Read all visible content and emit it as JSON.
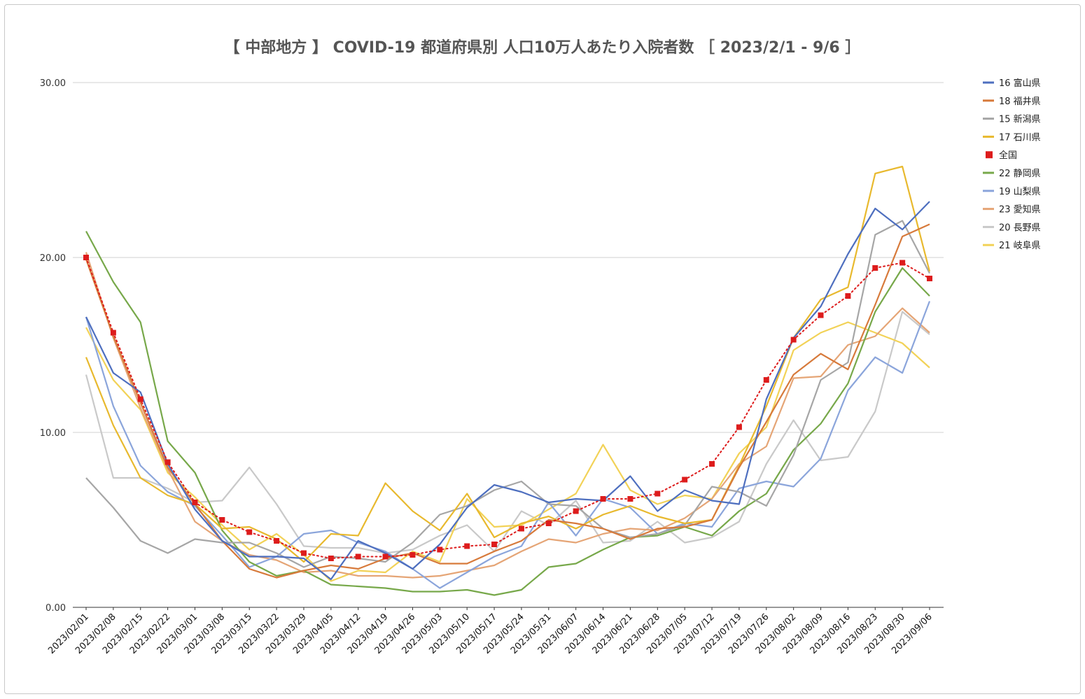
{
  "chart_data": {
    "type": "line",
    "title": "【 中部地方 】 COVID-19 都道府県別 人口10万人あたり入院者数 ［ 2023/2/1 - 9/6 ］",
    "xlabel": "",
    "ylabel": "",
    "ylim": [
      0,
      30
    ],
    "yticks": [
      "0.00",
      "10.00",
      "20.00",
      "30.00"
    ],
    "grid": true,
    "legend_position": "right",
    "categories": [
      "2023/02/01",
      "2023/02/08",
      "2023/02/15",
      "2023/02/22",
      "2023/03/01",
      "2023/03/08",
      "2023/03/15",
      "2023/03/22",
      "2023/03/29",
      "2023/04/05",
      "2023/04/12",
      "2023/04/19",
      "2023/04/26",
      "2023/05/03",
      "2023/05/10",
      "2023/05/17",
      "2023/05/24",
      "2023/05/31",
      "2023/06/07",
      "2023/06/14",
      "2023/06/21",
      "2023/06/28",
      "2023/07/05",
      "2023/07/12",
      "2023/07/19",
      "2023/07/26",
      "2023/08/02",
      "2023/08/09",
      "2023/08/16",
      "2023/08/23",
      "2023/08/30",
      "2023/09/06"
    ],
    "series": [
      {
        "name": "16 富山県",
        "color": "#4e6fbf",
        "style": "solid",
        "values": [
          16.6,
          13.4,
          12.3,
          8.2,
          5.6,
          3.8,
          2.9,
          2.9,
          2.8,
          1.6,
          3.8,
          3.1,
          2.2,
          3.6,
          5.7,
          7.0,
          6.6,
          6.0,
          6.2,
          6.1,
          7.5,
          5.5,
          6.7,
          6.1,
          5.9,
          11.9,
          15.4,
          17.2,
          20.2,
          22.8,
          21.6,
          23.2
        ]
      },
      {
        "name": "18 福井県",
        "color": "#d77a3b",
        "style": "solid",
        "values": [
          19.9,
          15.5,
          11.7,
          8.0,
          5.9,
          3.8,
          2.2,
          1.7,
          2.1,
          2.4,
          2.2,
          2.8,
          3.1,
          2.5,
          2.5,
          3.2,
          3.8,
          5.0,
          4.8,
          4.5,
          3.9,
          4.5,
          4.6,
          5.0,
          8.0,
          10.6,
          13.3,
          14.5,
          13.6,
          17.3,
          21.2,
          21.9
        ]
      },
      {
        "name": "15 新潟県",
        "color": "#a6a6a6",
        "style": "solid",
        "values": [
          7.4,
          5.7,
          3.8,
          3.1,
          3.9,
          3.7,
          3.7,
          3.1,
          2.3,
          2.9,
          2.8,
          2.6,
          3.7,
          5.3,
          5.8,
          6.7,
          7.2,
          5.9,
          5.8,
          4.5,
          4.0,
          4.2,
          4.7,
          6.9,
          6.6,
          5.8,
          8.7,
          13.0,
          14.0,
          21.3,
          22.1,
          19.1
        ]
      },
      {
        "name": "17 石川県",
        "color": "#e8b92e",
        "style": "solid",
        "values": [
          14.3,
          10.4,
          7.4,
          6.4,
          5.9,
          4.5,
          4.6,
          3.9,
          2.6,
          4.2,
          4.1,
          7.1,
          5.5,
          4.4,
          6.5,
          4.0,
          4.8,
          5.2,
          4.5,
          5.3,
          5.8,
          5.2,
          4.8,
          5.0,
          8.1,
          11.5,
          15.4,
          17.6,
          18.3,
          24.8,
          25.2,
          19.2
        ]
      },
      {
        "name": "全国",
        "color": "#dd1c1c",
        "style": "dotted-marker",
        "values": [
          20.0,
          15.7,
          11.9,
          8.3,
          6.0,
          5.0,
          4.3,
          3.8,
          3.1,
          2.8,
          2.9,
          2.9,
          3.0,
          3.3,
          3.5,
          3.6,
          4.5,
          4.8,
          5.5,
          6.2,
          6.2,
          6.5,
          7.3,
          8.2,
          10.3,
          13.0,
          15.3,
          16.7,
          17.8,
          19.4,
          19.7,
          18.8
        ]
      },
      {
        "name": "22 静岡県",
        "color": "#77a84a",
        "style": "solid",
        "values": [
          21.5,
          18.6,
          16.3,
          9.5,
          7.7,
          4.4,
          2.6,
          1.8,
          2.1,
          1.3,
          1.2,
          1.1,
          0.9,
          0.9,
          1.0,
          0.7,
          1.0,
          2.3,
          2.5,
          3.3,
          4.0,
          4.1,
          4.6,
          4.1,
          5.5,
          6.5,
          9.0,
          10.5,
          12.8,
          16.9,
          19.4,
          17.8
        ]
      },
      {
        "name": "19 山梨県",
        "color": "#8ba5db",
        "style": "solid",
        "values": [
          16.6,
          11.5,
          8.1,
          6.6,
          5.8,
          4.1,
          2.3,
          2.9,
          4.2,
          4.4,
          3.7,
          3.2,
          2.2,
          1.1,
          2.0,
          2.9,
          3.5,
          6.0,
          4.1,
          6.2,
          5.7,
          4.2,
          4.8,
          4.6,
          6.8,
          7.2,
          6.9,
          8.5,
          12.4,
          14.3,
          13.4,
          17.5
        ]
      },
      {
        "name": "23 愛知県",
        "color": "#e5a576",
        "style": "solid",
        "values": [
          20.3,
          15.4,
          11.4,
          7.9,
          4.9,
          3.8,
          3.0,
          2.7,
          2.0,
          2.1,
          1.8,
          1.8,
          1.7,
          1.8,
          2.1,
          2.4,
          3.2,
          3.9,
          3.7,
          4.2,
          4.5,
          4.4,
          5.1,
          6.2,
          8.2,
          9.2,
          13.1,
          13.2,
          15.0,
          15.5,
          17.1,
          15.7
        ]
      },
      {
        "name": "20 長野県",
        "color": "#c9c9c9",
        "style": "solid",
        "values": [
          13.3,
          7.4,
          7.4,
          6.8,
          6.0,
          6.1,
          8.0,
          5.9,
          3.5,
          3.4,
          3.4,
          3.1,
          3.3,
          4.1,
          4.7,
          3.2,
          5.5,
          4.7,
          6.1,
          3.7,
          3.8,
          4.9,
          3.7,
          4.0,
          4.9,
          8.2,
          10.7,
          8.4,
          8.6,
          11.2,
          16.9,
          15.6
        ]
      },
      {
        "name": "21 岐阜県",
        "color": "#f2d257",
        "style": "solid",
        "values": [
          16.0,
          13.0,
          11.3,
          7.7,
          6.3,
          4.7,
          3.3,
          4.2,
          3.0,
          1.5,
          2.1,
          2.0,
          3.2,
          2.6,
          6.2,
          4.6,
          4.7,
          5.6,
          6.5,
          9.3,
          6.7,
          5.9,
          6.4,
          6.2,
          8.8,
          10.3,
          14.7,
          15.7,
          16.3,
          15.7,
          15.1,
          13.7
        ]
      }
    ]
  }
}
